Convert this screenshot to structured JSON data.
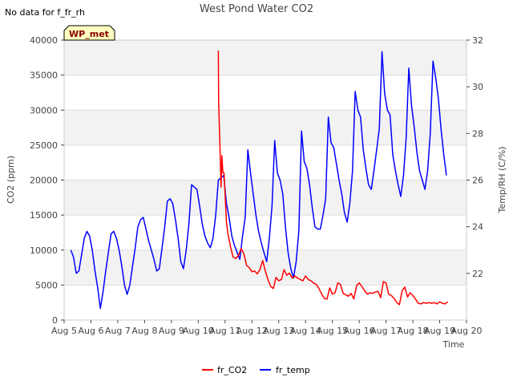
{
  "chart_data": {
    "type": "line",
    "title": "West Pond Water CO2",
    "note": "No data for f_fr_rh",
    "station_label": "WP_met",
    "xlabel": "Time",
    "ylabel_left": "CO2 (ppm)",
    "ylabel_right": "Temp/RH (C/%)",
    "x_tick_labels": [
      "Aug 5",
      "Aug 6",
      "Aug 7",
      "Aug 8",
      "Aug 9",
      "Aug 10",
      "Aug 11",
      "Aug 12",
      "Aug 13",
      "Aug 14",
      "Aug 15",
      "Aug 16",
      "Aug 17",
      "Aug 18",
      "Aug 19",
      "Aug 20"
    ],
    "xlim_days": [
      5,
      20
    ],
    "ylim_left": [
      0,
      40000
    ],
    "yticks_left": [
      "0",
      "5000",
      "10000",
      "15000",
      "20000",
      "25000",
      "30000",
      "35000",
      "40000"
    ],
    "ylim_right": [
      20,
      32
    ],
    "yticks_right": [
      "22",
      "24",
      "26",
      "28",
      "30",
      "32"
    ],
    "grid": true,
    "legend_position": "bottom-center",
    "series": [
      {
        "name": "fr_CO2",
        "axis": "left",
        "color": "#ff0000",
        "x": [
          10.75,
          10.76,
          10.8,
          10.85,
          10.88,
          10.92,
          10.96,
          11.0,
          11.05,
          11.1,
          11.2,
          11.3,
          11.4,
          11.5,
          11.6,
          11.7,
          11.8,
          11.9,
          12.0,
          12.1,
          12.2,
          12.3,
          12.4,
          12.5,
          12.6,
          12.7,
          12.8,
          12.9,
          13.0,
          13.1,
          13.2,
          13.3,
          13.4,
          13.5,
          13.6,
          13.7,
          13.8,
          13.9,
          14.0,
          14.1,
          14.2,
          14.3,
          14.4,
          14.5,
          14.6,
          14.7,
          14.8,
          14.9,
          15.0,
          15.1,
          15.2,
          15.3,
          15.4,
          15.5,
          15.6,
          15.7,
          15.8,
          15.9,
          16.0,
          16.1,
          16.2,
          16.3,
          16.4,
          16.5,
          16.6,
          16.7,
          16.8,
          16.9,
          17.0,
          17.1,
          17.2,
          17.3,
          17.4,
          17.5,
          17.6,
          17.7,
          17.8,
          17.9,
          18.0,
          18.1,
          18.2,
          18.3,
          18.4,
          18.5,
          18.6,
          18.7,
          18.8,
          18.9,
          19.0,
          19.1,
          19.2,
          19.3
        ],
        "y": [
          38500,
          31000,
          26000,
          19000,
          23500,
          21000,
          21000,
          18000,
          14000,
          12500,
          10500,
          9000,
          8800,
          9200,
          10200,
          9500,
          7800,
          7500,
          6900,
          7000,
          6600,
          7200,
          8500,
          7000,
          5800,
          4800,
          4500,
          6100,
          5600,
          5800,
          7200,
          6400,
          6700,
          6000,
          6300,
          6000,
          5800,
          5600,
          6300,
          5800,
          5600,
          5300,
          5100,
          4500,
          3700,
          3100,
          3000,
          4600,
          3700,
          3900,
          5300,
          5100,
          3800,
          3600,
          3400,
          3800,
          3000,
          4900,
          5300,
          4800,
          4200,
          3700,
          3900,
          3800,
          4000,
          4100,
          3200,
          5500,
          5300,
          3700,
          3500,
          3100,
          2500,
          2200,
          4200,
          4700,
          3300,
          3900,
          3500,
          3000,
          2400,
          2300,
          2500,
          2400,
          2500,
          2400,
          2500,
          2300,
          2600,
          2400,
          2300,
          2600
        ]
      },
      {
        "name": "fr_temp",
        "axis": "right",
        "color": "#0000ff",
        "x": [
          5.25,
          5.35,
          5.45,
          5.55,
          5.65,
          5.75,
          5.85,
          5.95,
          6.05,
          6.15,
          6.25,
          6.35,
          6.45,
          6.55,
          6.65,
          6.75,
          6.85,
          6.95,
          7.05,
          7.15,
          7.25,
          7.35,
          7.45,
          7.55,
          7.65,
          7.75,
          7.85,
          7.95,
          8.05,
          8.15,
          8.25,
          8.35,
          8.45,
          8.55,
          8.65,
          8.75,
          8.85,
          8.95,
          9.05,
          9.15,
          9.25,
          9.35,
          9.45,
          9.55,
          9.65,
          9.75,
          9.85,
          9.95,
          10.05,
          10.15,
          10.25,
          10.35,
          10.45,
          10.55,
          10.65,
          10.75,
          10.85,
          10.95,
          11.05,
          11.15,
          11.25,
          11.35,
          11.45,
          11.55,
          11.65,
          11.75,
          11.85,
          11.95,
          12.05,
          12.15,
          12.25,
          12.35,
          12.45,
          12.55,
          12.65,
          12.75,
          12.85,
          12.95,
          13.05,
          13.15,
          13.25,
          13.35,
          13.45,
          13.55,
          13.65,
          13.75,
          13.85,
          13.95,
          14.05,
          14.15,
          14.25,
          14.35,
          14.45,
          14.55,
          14.65,
          14.75,
          14.85,
          14.95,
          15.05,
          15.15,
          15.25,
          15.35,
          15.45,
          15.55,
          15.65,
          15.75,
          15.85,
          15.95,
          16.05,
          16.15,
          16.25,
          16.35,
          16.45,
          16.55,
          16.65,
          16.75,
          16.85,
          16.95,
          17.05,
          17.15,
          17.25,
          17.35,
          17.45,
          17.55,
          17.65,
          17.75,
          17.85,
          17.95,
          18.05,
          18.15,
          18.25,
          18.35,
          18.45,
          18.55,
          18.65,
          18.75,
          18.85,
          18.95,
          19.05,
          19.15,
          19.25
        ],
        "y": [
          23.0,
          22.7,
          22.0,
          22.1,
          22.8,
          23.5,
          23.8,
          23.6,
          23.0,
          22.1,
          21.4,
          20.5,
          21.2,
          22.1,
          22.9,
          23.7,
          23.8,
          23.5,
          23.0,
          22.3,
          21.5,
          21.1,
          21.5,
          22.3,
          23.1,
          24.0,
          24.3,
          24.4,
          23.9,
          23.4,
          23.0,
          22.6,
          22.1,
          22.2,
          23.1,
          24.0,
          25.1,
          25.2,
          25.0,
          24.3,
          23.5,
          22.5,
          22.2,
          23.0,
          24.1,
          25.8,
          25.7,
          25.6,
          24.9,
          24.1,
          23.6,
          23.3,
          23.1,
          23.5,
          24.5,
          26.0,
          26.1,
          26.2,
          25.0,
          24.4,
          23.6,
          23.2,
          22.9,
          22.6,
          23.6,
          24.4,
          27.3,
          26.3,
          25.4,
          24.5,
          23.8,
          23.3,
          22.9,
          22.5,
          23.5,
          24.9,
          27.7,
          26.3,
          26.0,
          25.4,
          24.0,
          22.9,
          22.2,
          21.8,
          22.5,
          23.8,
          28.1,
          26.8,
          26.5,
          25.8,
          24.8,
          24.0,
          23.9,
          23.9,
          24.5,
          25.2,
          28.7,
          27.6,
          27.4,
          26.7,
          26.0,
          25.4,
          24.6,
          24.2,
          25.0,
          26.4,
          29.8,
          29.0,
          28.7,
          27.3,
          26.5,
          25.8,
          25.6,
          26.4,
          27.3,
          28.2,
          31.5,
          29.7,
          29.0,
          28.8,
          27.1,
          26.4,
          25.8,
          25.3,
          26.2,
          27.8,
          30.8,
          29.2,
          28.3,
          27.2,
          26.4,
          26.0,
          25.6,
          26.4,
          28.0,
          31.1,
          30.4,
          29.5,
          28.2,
          27.1,
          26.2
        ]
      }
    ]
  }
}
